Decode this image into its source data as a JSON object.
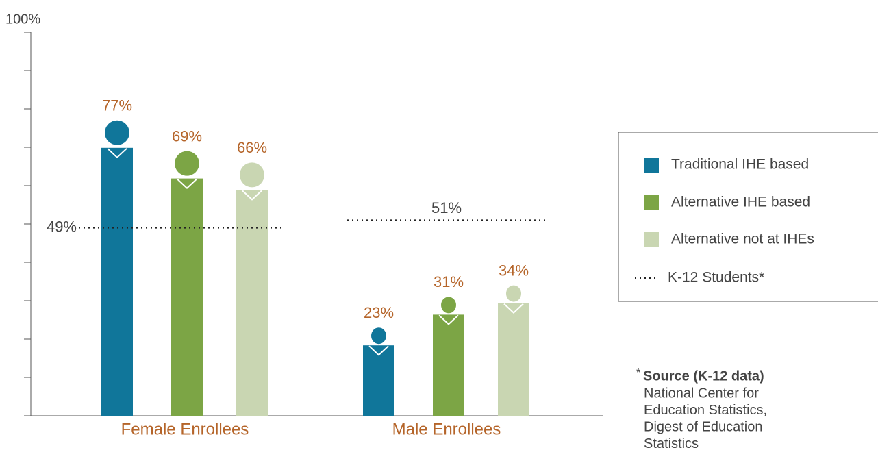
{
  "chart_data": {
    "type": "bar",
    "categories": [
      "Female Enrollees",
      "Male Enrollees"
    ],
    "series": [
      {
        "name": "Traditional IHE based",
        "color": "#10769a",
        "values": [
          77,
          23
        ],
        "value_labels": [
          "77%",
          "23%"
        ]
      },
      {
        "name": "Alternative IHE based",
        "color": "#7ca545",
        "values": [
          69,
          31
        ],
        "value_labels": [
          "69%",
          "31%"
        ]
      },
      {
        "name": "Alternative not at IHEs",
        "color": "#c9d6b2",
        "values": [
          66,
          34
        ],
        "value_labels": [
          "66%",
          "34%"
        ]
      }
    ],
    "reference": {
      "name": "K-12 Students*",
      "values": [
        49,
        51
      ],
      "value_labels": [
        "49%",
        "51%"
      ]
    },
    "ylim": [
      0,
      100
    ],
    "yticks": [
      0,
      10,
      20,
      30,
      40,
      50,
      60,
      70,
      80,
      90,
      {
        "value": 100,
        "label": "100%"
      }
    ],
    "label_color": "#b5652a",
    "note": {
      "marker": "*",
      "heading": "Source (K-12 data)",
      "lines": [
        "National Center for",
        "Education Statistics,",
        "Digest of Education",
        "Statistics"
      ]
    }
  }
}
